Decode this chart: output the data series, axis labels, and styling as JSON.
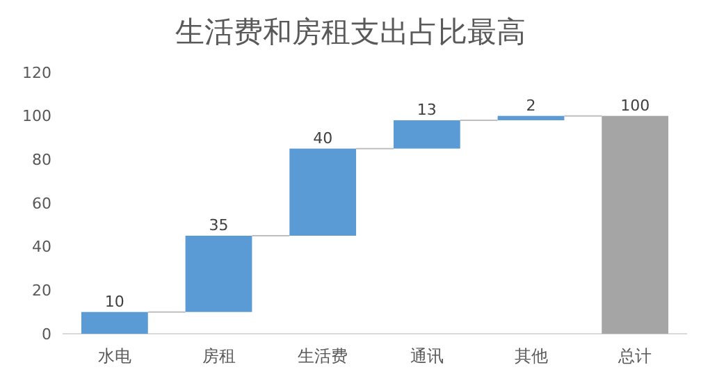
{
  "chart_data": {
    "type": "bar",
    "title": "生活费和房租支出占比最高",
    "categories": [
      "水电",
      "房租",
      "生活费",
      "通讯",
      "其他",
      "总计"
    ],
    "values": [
      10,
      35,
      40,
      13,
      2,
      100
    ],
    "base": [
      0,
      10,
      45,
      85,
      98,
      0
    ],
    "colors": [
      "#5b9bd5",
      "#5b9bd5",
      "#5b9bd5",
      "#5b9bd5",
      "#5b9bd5",
      "#a5a5a5"
    ],
    "ylim": [
      0,
      120
    ],
    "yticks": [
      0,
      20,
      40,
      60,
      80,
      100,
      120
    ],
    "data_labels": true
  }
}
